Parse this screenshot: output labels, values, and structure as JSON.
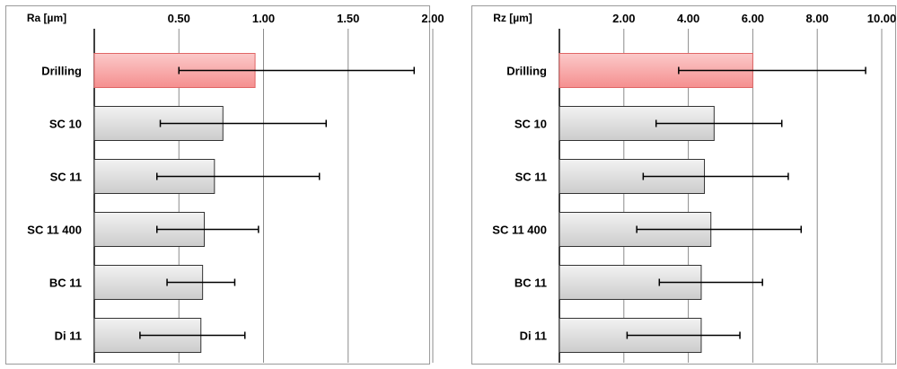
{
  "chart_data": [
    {
      "type": "bar",
      "orientation": "horizontal",
      "ylabel": "Ra [µm]",
      "xlim": [
        0,
        2.0
      ],
      "ticks": [
        "0.50",
        "1.00",
        "1.50",
        "2.00"
      ],
      "tick_values": [
        0.5,
        1.0,
        1.5,
        2.0
      ],
      "grid": true,
      "categories": [
        "Drilling",
        "SC 10",
        "SC 11",
        "SC 11 400",
        "BC 11",
        "Di 11"
      ],
      "values": [
        0.95,
        0.76,
        0.71,
        0.65,
        0.64,
        0.63
      ],
      "error_low": [
        0.5,
        0.39,
        0.37,
        0.37,
        0.43,
        0.27
      ],
      "error_high": [
        1.89,
        1.37,
        1.33,
        0.97,
        0.83,
        0.89
      ],
      "highlight_index": 0,
      "colors": {
        "highlight": "#f58f8f",
        "bar": "#cccccc"
      }
    },
    {
      "type": "bar",
      "orientation": "horizontal",
      "ylabel": "Rz [µm]",
      "xlim": [
        0,
        10.0
      ],
      "ticks": [
        "2.00",
        "4.00",
        "6.00",
        "8.00",
        "10.00"
      ],
      "tick_values": [
        2,
        4,
        6,
        8,
        10
      ],
      "grid": true,
      "categories": [
        "Drilling",
        "SC 10",
        "SC 11",
        "SC 11 400",
        "BC 11",
        "Di 11"
      ],
      "values": [
        6.0,
        4.8,
        4.5,
        4.7,
        4.4,
        4.4
      ],
      "error_low": [
        3.7,
        3.0,
        2.6,
        2.4,
        3.1,
        2.1
      ],
      "error_high": [
        9.5,
        6.9,
        7.1,
        7.5,
        6.3,
        5.6
      ],
      "highlight_index": 0,
      "colors": {
        "highlight": "#f58f8f",
        "bar": "#cccccc"
      }
    }
  ]
}
